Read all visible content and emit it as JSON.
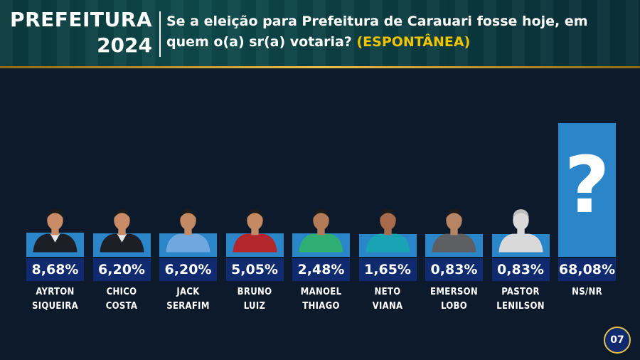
{
  "header": {
    "brand_line1": "PREFEITURA",
    "brand_line2": "2024",
    "question_line1": "Se a eleição para Prefeitura de Carauari fosse hoje, em",
    "question_line2_prefix": "quem o(a) sr(a) votaria?",
    "question_highlight": "(ESPONTÂNEA)"
  },
  "page_number": "07",
  "colors": {
    "background": "#0c1a2b",
    "bar": "#2a86c8",
    "value_box": "#0f2a6e",
    "highlight": "#f2c400",
    "accent_line": "#e9c14a"
  },
  "chart_data": {
    "type": "bar",
    "categories": [
      "AYRTON SIQUEIRA",
      "CHICO COSTA",
      "JACK SERAFIM",
      "BRUNO LUIZ",
      "MANOEL THIAGO",
      "NETO VIANA",
      "EMERSON LOBO",
      "PASTOR LENILSON",
      "NS/NR"
    ],
    "values": [
      8.68,
      6.2,
      6.2,
      5.05,
      2.48,
      1.65,
      0.83,
      0.83,
      68.08
    ],
    "value_labels": [
      "8,68%",
      "6,20%",
      "6,20%",
      "5,05%",
      "2,48%",
      "1,65%",
      "0,83%",
      "0,83%",
      "68,08%"
    ],
    "name_lines": [
      [
        "AYRTON",
        "SIQUEIRA"
      ],
      [
        "CHICO",
        "COSTA"
      ],
      [
        "JACK",
        "SERAFIM"
      ],
      [
        "BRUNO",
        "LUIZ"
      ],
      [
        "MANOEL",
        "THIAGO"
      ],
      [
        "NETO",
        "VIANA"
      ],
      [
        "EMERSON",
        "LOBO"
      ],
      [
        "PASTOR",
        "LENILSON"
      ],
      [
        "NS/NR",
        ""
      ]
    ],
    "candidate_photos": [
      "suit-dark",
      "suit-dark",
      "shirt-light-blue",
      "shirt-red",
      "shirt-green",
      "shirt-teal",
      "shirt-grey",
      "placeholder-avatar",
      "question-mark"
    ],
    "unknown_symbol": "?",
    "title": "",
    "xlabel": "",
    "ylabel": ""
  }
}
